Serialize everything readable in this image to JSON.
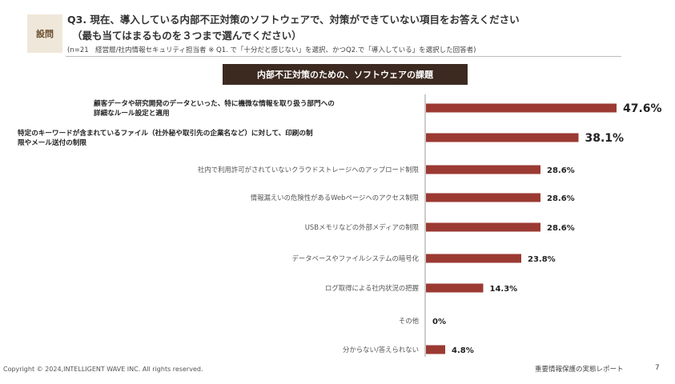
{
  "header": {
    "badge": "設問",
    "question": "Q3. 現在、導入している内部不正対策のソフトウェアで、対策ができていない項目をお答えください",
    "instruction": "（最も当てはまるものを３つまで選んでください）",
    "note": "(n=21　経営層/社内情報セキュリティ担当者 ※ Q1. で「十分だと感じない」を選択、かつQ2.で「導入している」を選択した回答者)"
  },
  "chart_data": {
    "type": "bar",
    "orientation": "horizontal",
    "title": "内部不正対策のための、ソフトウェアの課題",
    "unit": "%",
    "bar_color": "#9b3a33",
    "xlim": [
      0,
      100
    ],
    "categories": [
      [
        "顧客データや研究開発のデータといった、特に機微な情報を取り扱う部門への",
        "詳細なルール設定と適用"
      ],
      [
        "特定のキーワードが含まれているファイル（社外秘や取引先の企業名など）に対して、印刷の制",
        "限やメール送付の制限"
      ],
      [
        "社内で利用許可がされていないクラウドストレージへのアップロード制限"
      ],
      [
        "情報漏えいの危険性があるWebページへのアクセス制限"
      ],
      [
        "USBメモリなどの外部メディアの制限"
      ],
      [
        "データベースやファイルシステムの暗号化"
      ],
      [
        "ログ取得による社内状況の把握"
      ],
      [
        "その他"
      ],
      [
        "分からない/答えられない"
      ]
    ],
    "values": [
      47.6,
      38.1,
      28.6,
      28.6,
      28.6,
      23.8,
      14.3,
      0,
      4.8
    ],
    "value_labels": [
      "47.6%",
      "38.1%",
      "28.6%",
      "28.6%",
      "28.6%",
      "23.8%",
      "14.3%",
      "0%",
      "4.8%"
    ],
    "emphasized": [
      true,
      true,
      false,
      false,
      false,
      false,
      false,
      false,
      false
    ]
  },
  "footer": {
    "copyright": "Copyright © 2024,INTELLIGENT WAVE INC. All rights reserved.",
    "report": "重要情報保護の実態レポート",
    "page": "7"
  }
}
